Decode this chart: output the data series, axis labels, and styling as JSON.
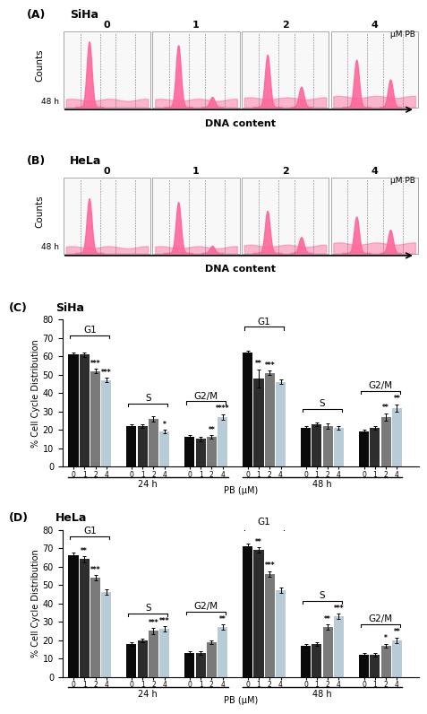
{
  "panel_A_title": "SiHa",
  "panel_B_title": "HeLa",
  "panel_C_title": "SiHa",
  "panel_D_title": "HeLa",
  "flow_concentrations": [
    "0",
    "1",
    "2",
    "4"
  ],
  "uM_PB_label": "μM PB",
  "DNA_content_label": "DNA content",
  "counts_label": "Counts",
  "ylabel_bar": "% Cell Cycle Distribution",
  "xlabel_bar": "PB (μM)",
  "bar_colors": [
    "#0a0a0a",
    "#2d2d2d",
    "#7a7a7a",
    "#b8ccd8"
  ],
  "bar_groups_C": {
    "G1_24h": [
      61,
      61,
      52,
      47
    ],
    "S_24h": [
      22,
      22,
      26,
      19
    ],
    "G2M_24h": [
      16,
      15,
      16,
      27
    ],
    "G1_48h": [
      62,
      48,
      51,
      46
    ],
    "S_48h": [
      21,
      23,
      22,
      21
    ],
    "G2M_48h": [
      19,
      21,
      27,
      32
    ]
  },
  "bar_groups_D": {
    "G1_24h": [
      66,
      64,
      54,
      46
    ],
    "S_24h": [
      18,
      20,
      25,
      26
    ],
    "G2M_24h": [
      13,
      13,
      19,
      27
    ],
    "G1_48h": [
      71,
      69,
      56,
      47
    ],
    "S_48h": [
      17,
      18,
      27,
      33
    ],
    "G2M_48h": [
      12,
      12,
      17,
      20
    ]
  },
  "error_C": {
    "G1_24h": [
      1.2,
      1.2,
      1.2,
      1.2
    ],
    "S_24h": [
      1.0,
      1.0,
      1.5,
      1.0
    ],
    "G2M_24h": [
      1.0,
      1.0,
      1.0,
      1.5
    ],
    "G1_48h": [
      1.2,
      5.0,
      1.2,
      1.2
    ],
    "S_48h": [
      1.0,
      1.0,
      1.5,
      1.0
    ],
    "G2M_48h": [
      1.0,
      1.0,
      2.0,
      2.0
    ]
  },
  "error_D": {
    "G1_24h": [
      1.5,
      1.5,
      1.5,
      1.5
    ],
    "S_24h": [
      1.0,
      1.0,
      1.5,
      1.5
    ],
    "G2M_24h": [
      1.0,
      1.0,
      1.0,
      1.5
    ],
    "G1_48h": [
      1.5,
      1.5,
      1.5,
      1.5
    ],
    "S_48h": [
      1.0,
      1.0,
      1.5,
      1.5
    ],
    "G2M_48h": [
      1.0,
      1.0,
      1.0,
      1.5
    ]
  },
  "sig_C": {
    "G1_24h_2": "***",
    "G1_24h_3": "***",
    "S_24h_3": "*",
    "G2M_24h_2": "**",
    "G2M_24h_3": "****",
    "G1_48h_1": "**",
    "G1_48h_2": "***",
    "G2M_48h_2": "**",
    "G2M_48h_3": "**"
  },
  "sig_D": {
    "G1_24h_1": "**",
    "G1_24h_2": "***",
    "S_24h_2": "***",
    "S_24h_3": "***",
    "G2M_24h_3": "**",
    "G1_48h_1": "**",
    "G1_48h_2": "***",
    "S_48h_2": "**",
    "S_48h_3": "***",
    "G2M_48h_2": "*",
    "G2M_48h_3": "**"
  },
  "flow_pink": "#FF6699",
  "bg_color": "#ffffff",
  "ylim_C": [
    0,
    80
  ],
  "ylim_D": [
    0,
    80
  ]
}
